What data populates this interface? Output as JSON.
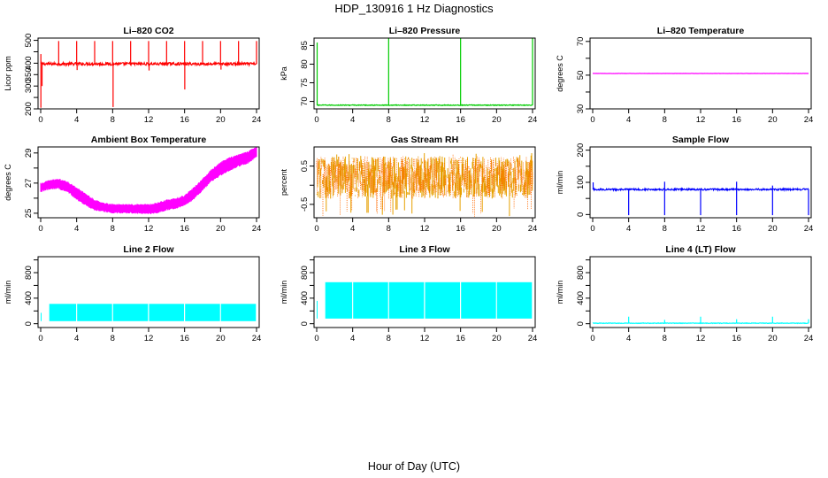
{
  "title": "HDP_130916  1 Hz Diagnostics",
  "xlabel": "Hour of Day (UTC)",
  "chart_data": [
    {
      "type": "line",
      "title": "Li–820 CO2",
      "ylabel": "Licor ppm",
      "color": "#ff0000",
      "xlim": [
        0,
        24
      ],
      "xticks": [
        "0",
        "4",
        "8",
        "12",
        "16",
        "20",
        "24"
      ],
      "ylim": [
        200,
        510
      ],
      "yticks": [
        "200",
        "250",
        "300",
        "350",
        "400",
        "450",
        "500"
      ],
      "yticks_shown": [
        "200",
        "",
        "300",
        "350",
        "400",
        "",
        "500"
      ],
      "series": [
        {
          "baseline": 397,
          "noise": 6,
          "spikes_up": [
            [
              0.02,
              440
            ],
            [
              2,
              497
            ],
            [
              4,
              497
            ],
            [
              6,
              497
            ],
            [
              8,
              497
            ],
            [
              10,
              497
            ],
            [
              12,
              497
            ],
            [
              14,
              497
            ],
            [
              16,
              497
            ],
            [
              18,
              497
            ],
            [
              20,
              497
            ],
            [
              22,
              497
            ],
            [
              24,
              497
            ]
          ],
          "spikes_down": [
            [
              0.02,
              205
            ],
            [
              0.15,
              300
            ],
            [
              8.05,
              208
            ],
            [
              16.02,
              285
            ],
            [
              4.05,
              370
            ],
            [
              12.05,
              368
            ],
            [
              20.05,
              372
            ]
          ]
        }
      ]
    },
    {
      "type": "line",
      "title": "Li–820 Pressure",
      "ylabel": "kPa",
      "color": "#00cc00",
      "xlim": [
        0,
        24
      ],
      "xticks": [
        "0",
        "4",
        "8",
        "12",
        "16",
        "20",
        "24"
      ],
      "ylim": [
        68,
        87
      ],
      "yticks": [
        "70",
        "75",
        "80",
        "85"
      ],
      "series": [
        {
          "baseline": 69,
          "noise": 0.1,
          "spikes_up": [
            [
              0.05,
              85.8
            ],
            [
              8,
              87
            ],
            [
              16,
              87
            ],
            [
              24,
              87
            ]
          ],
          "spikes_down": []
        }
      ]
    },
    {
      "type": "line",
      "title": "Li–820 Temperature",
      "ylabel": "degrees C",
      "color": "#ff00ff",
      "xlim": [
        0,
        24
      ],
      "xticks": [
        "0",
        "4",
        "8",
        "12",
        "16",
        "20",
        "24"
      ],
      "ylim": [
        30,
        72
      ],
      "yticks": [
        "30",
        "50",
        "70"
      ],
      "yticks_minor": [
        "40",
        "60"
      ],
      "series": [
        {
          "baseline": 51,
          "noise": 0.05,
          "spikes_up": [],
          "spikes_down": []
        }
      ]
    },
    {
      "type": "line",
      "title": "Ambient Box Temperature",
      "ylabel": "degrees C",
      "color": "#ff00ff",
      "xlim": [
        0,
        24
      ],
      "xticks": [
        "0",
        "4",
        "8",
        "12",
        "16",
        "20",
        "24"
      ],
      "ylim": [
        24.7,
        29.4
      ],
      "yticks": [
        "25",
        "27",
        "29"
      ],
      "yticks_minor": [
        "26",
        "28"
      ],
      "series": [
        {
          "band": [
            [
              0,
              26.5,
              26.9
            ],
            [
              1,
              26.7,
              27.1
            ],
            [
              2,
              26.7,
              27.2
            ],
            [
              3,
              26.5,
              27.0
            ],
            [
              4,
              26.0,
              26.6
            ],
            [
              5,
              25.6,
              26.2
            ],
            [
              6,
              25.3,
              25.8
            ],
            [
              7,
              25.2,
              25.6
            ],
            [
              8,
              25.1,
              25.5
            ],
            [
              10,
              25.1,
              25.5
            ],
            [
              12,
              25.05,
              25.5
            ],
            [
              13,
              25.1,
              25.6
            ],
            [
              14,
              25.3,
              25.8
            ],
            [
              15,
              25.4,
              25.9
            ],
            [
              16,
              25.6,
              26.1
            ],
            [
              17,
              26.0,
              26.6
            ],
            [
              18,
              26.6,
              27.2
            ],
            [
              19,
              27.2,
              27.8
            ],
            [
              20,
              27.6,
              28.3
            ],
            [
              21,
              27.9,
              28.6
            ],
            [
              22,
              28.2,
              28.8
            ],
            [
              23,
              28.4,
              29.0
            ],
            [
              24,
              28.8,
              29.3
            ]
          ]
        }
      ]
    },
    {
      "type": "line",
      "title": "Gas Stream RH",
      "ylabel": "percent",
      "color": "#e6a000",
      "color2": "#ff6a00",
      "xlim": [
        0,
        24
      ],
      "xticks": [
        "0",
        "4",
        "8",
        "12",
        "16",
        "20",
        "24"
      ],
      "ylim": [
        -0.85,
        1.0
      ],
      "yticks": [
        "-0.5",
        "0.5"
      ],
      "yticks_minor": [
        "0.0"
      ],
      "series": [
        {
          "center": 0.2,
          "half_range": 0.55,
          "outlier": 0.85
        }
      ]
    },
    {
      "type": "line",
      "title": "Sample Flow",
      "ylabel": "ml/min",
      "color": "#0000ff",
      "xlim": [
        0,
        24
      ],
      "xticks": [
        "0",
        "4",
        "8",
        "12",
        "16",
        "20",
        "24"
      ],
      "ylim": [
        -10,
        210
      ],
      "yticks": [
        "0",
        "100",
        "200"
      ],
      "yticks_minor": [
        "50",
        "150"
      ],
      "series": [
        {
          "baseline": 78,
          "noise": 2.5,
          "spikes_up": [
            [
              0.05,
              100
            ],
            [
              8,
              102
            ],
            [
              16,
              102
            ],
            [
              20,
              90
            ]
          ],
          "spikes_down": [
            [
              4,
              -2
            ],
            [
              8,
              -2
            ],
            [
              12,
              -2
            ],
            [
              16,
              -2
            ],
            [
              20,
              -2
            ],
            [
              24,
              -2
            ]
          ]
        }
      ]
    },
    {
      "type": "line",
      "title": "Line 2 Flow",
      "ylabel": "ml/min",
      "color": "#00ffff",
      "xlim": [
        0,
        24
      ],
      "xticks": [
        "0",
        "4",
        "8",
        "12",
        "16",
        "20",
        "24"
      ],
      "ylim": [
        -60,
        1050
      ],
      "yticks": [
        "0",
        "400",
        "800"
      ],
      "yticks_minor": [
        "200",
        "600",
        "1000"
      ],
      "series": [
        {
          "low": 40,
          "high": 310,
          "gaps": [
            4,
            8,
            12,
            16,
            20
          ]
        }
      ]
    },
    {
      "type": "line",
      "title": "Line 3 Flow",
      "ylabel": "ml/min",
      "color": "#00ffff",
      "xlim": [
        0,
        24
      ],
      "xticks": [
        "0",
        "4",
        "8",
        "12",
        "16",
        "20",
        "24"
      ],
      "ylim": [
        -60,
        1050
      ],
      "yticks": [
        "0",
        "400",
        "800"
      ],
      "yticks_minor": [
        "200",
        "600",
        "1000"
      ],
      "series": [
        {
          "low": 80,
          "high": 650,
          "gaps": [
            4,
            8,
            12,
            16,
            20
          ]
        }
      ]
    },
    {
      "type": "line",
      "title": "Line 4 (LT) Flow",
      "ylabel": "ml/min",
      "color": "#00ffff",
      "xlim": [
        0,
        24
      ],
      "xticks": [
        "0",
        "4",
        "8",
        "12",
        "16",
        "20",
        "24"
      ],
      "ylim": [
        -60,
        1050
      ],
      "yticks": [
        "0",
        "400",
        "800"
      ],
      "yticks_minor": [
        "200",
        "600",
        "1000"
      ],
      "series": [
        {
          "baseline": 8,
          "noise": 4,
          "spikes_up": [
            [
              4,
              110
            ],
            [
              8,
              60
            ],
            [
              12,
              110
            ],
            [
              16,
              70
            ],
            [
              20,
              110
            ],
            [
              24,
              70
            ]
          ],
          "spikes_down": []
        }
      ]
    }
  ]
}
